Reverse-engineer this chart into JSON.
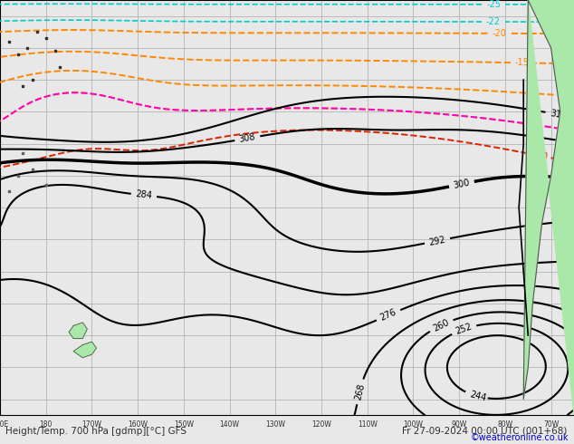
{
  "title_left": "Height/Temp. 700 hPa [gdmp][°C] GFS",
  "title_right": "Fr 27-09-2024 00:00 UTC (001+68)",
  "copyright": "©weatheronline.co.uk",
  "bg_color": "#e8e8e8",
  "map_bg": "#e8e8e8",
  "land_color": "#aae8aa",
  "grid_color": "#aaaaaa",
  "bottom_label_color": "#303030",
  "figsize": [
    6.34,
    4.9
  ],
  "dpi": 100,
  "contour_black_color": "#000000",
  "contour_orange_color": "#ff8800",
  "contour_magenta_color": "#ff00cc",
  "contour_red_color": "#dd2200",
  "contour_cyan_color": "#00cccc",
  "contour_green_color": "#44cc44",
  "contour_yellow_color": "#aacc00"
}
